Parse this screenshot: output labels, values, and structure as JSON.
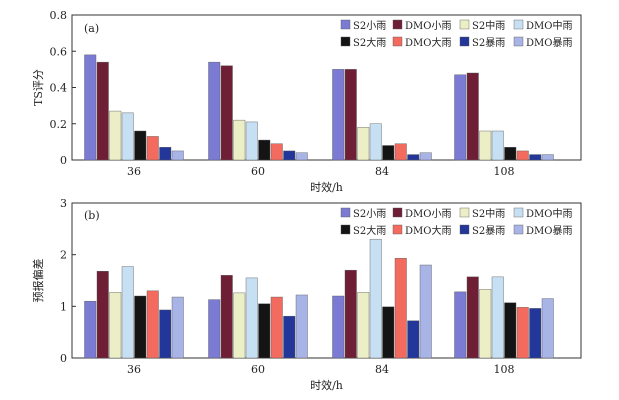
{
  "chart_data": [
    {
      "type": "bar",
      "panel_label": "(a)",
      "title": "",
      "xlabel": "时效/h",
      "ylabel": "TS评分",
      "ylim": [
        0,
        0.8
      ],
      "yticks": [
        "0",
        "0.2",
        "0.4",
        "0.6",
        "0.8"
      ],
      "categories": [
        "36",
        "60",
        "84",
        "108"
      ],
      "legend_position": "top-right",
      "series": [
        {
          "name": "S2小雨",
          "color": "#7b7bd4",
          "values": [
            0.58,
            0.54,
            0.5,
            0.47
          ]
        },
        {
          "name": "DMO小雨",
          "color": "#6e1f35",
          "values": [
            0.54,
            0.52,
            0.5,
            0.48
          ]
        },
        {
          "name": "S2中雨",
          "color": "#ecefc6",
          "values": [
            0.27,
            0.22,
            0.18,
            0.16
          ]
        },
        {
          "name": "DMO中雨",
          "color": "#c6dff2",
          "values": [
            0.26,
            0.21,
            0.2,
            0.16
          ]
        },
        {
          "name": "S2大雨",
          "color": "#141414",
          "values": [
            0.16,
            0.11,
            0.08,
            0.07
          ]
        },
        {
          "name": "DMO大雨",
          "color": "#f26b5e",
          "values": [
            0.13,
            0.09,
            0.09,
            0.05
          ]
        },
        {
          "name": "S2暴雨",
          "color": "#23379a",
          "values": [
            0.07,
            0.05,
            0.03,
            0.03
          ]
        },
        {
          "name": "DMO暴雨",
          "color": "#a8b3e6",
          "values": [
            0.05,
            0.04,
            0.04,
            0.03
          ]
        }
      ]
    },
    {
      "type": "bar",
      "panel_label": "(b)",
      "title": "",
      "xlabel": "时效/h",
      "ylabel": "预报偏差",
      "ylim": [
        0,
        3
      ],
      "yticks": [
        "0",
        "1",
        "2",
        "3"
      ],
      "categories": [
        "36",
        "60",
        "84",
        "108"
      ],
      "legend_position": "top-right",
      "series": [
        {
          "name": "S2小雨",
          "color": "#7b7bd4",
          "values": [
            1.1,
            1.13,
            1.2,
            1.28
          ]
        },
        {
          "name": "DMO小雨",
          "color": "#6e1f35",
          "values": [
            1.68,
            1.6,
            1.7,
            1.57
          ]
        },
        {
          "name": "S2中雨",
          "color": "#ecefc6",
          "values": [
            1.27,
            1.26,
            1.27,
            1.33
          ]
        },
        {
          "name": "DMO中雨",
          "color": "#c6dff2",
          "values": [
            1.77,
            1.55,
            2.3,
            1.57
          ]
        },
        {
          "name": "S2大雨",
          "color": "#141414",
          "values": [
            1.2,
            1.05,
            0.99,
            1.07
          ]
        },
        {
          "name": "DMO大雨",
          "color": "#f26b5e",
          "values": [
            1.3,
            1.18,
            1.93,
            0.98
          ]
        },
        {
          "name": "S2暴雨",
          "color": "#23379a",
          "values": [
            0.93,
            0.81,
            0.72,
            0.96
          ]
        },
        {
          "name": "DMO暴雨",
          "color": "#a8b3e6",
          "values": [
            1.18,
            1.22,
            1.8,
            1.15
          ]
        }
      ]
    }
  ]
}
